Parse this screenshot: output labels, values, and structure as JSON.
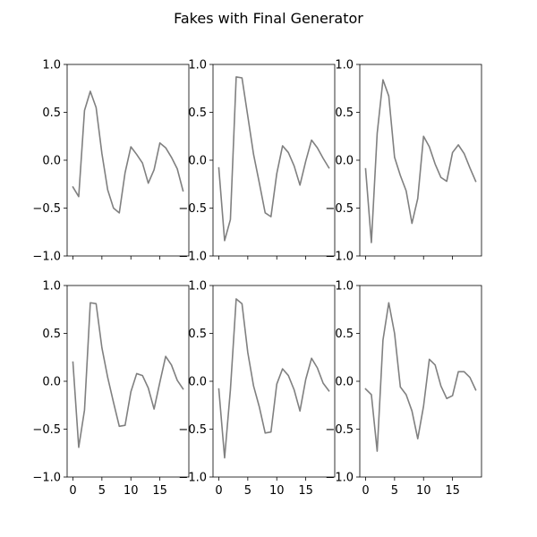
{
  "figure": {
    "title": "Fakes with Final Generator"
  },
  "chart_data": [
    {
      "type": "line",
      "panel": "row1-col1",
      "x": [
        0,
        1,
        2,
        3,
        4,
        5,
        6,
        7,
        8,
        9,
        10,
        11,
        12,
        13,
        14,
        15,
        16,
        17,
        18,
        19
      ],
      "y": [
        -0.28,
        -0.38,
        0.52,
        0.72,
        0.55,
        0.07,
        -0.31,
        -0.5,
        -0.55,
        -0.13,
        0.14,
        0.06,
        -0.03,
        -0.24,
        -0.1,
        0.18,
        0.13,
        0.03,
        -0.09,
        -0.32
      ],
      "series_color": "#808080",
      "xlim": [
        -1,
        20
      ],
      "ylim": [
        -1.0,
        1.0
      ],
      "yticks": [
        "1.0",
        "0.5",
        "0.0",
        "−0.5",
        "−1.0"
      ],
      "xticks": [
        "0",
        "5",
        "10",
        "15"
      ],
      "show_xticklabels": false
    },
    {
      "type": "line",
      "panel": "row1-col2",
      "x": [
        0,
        1,
        2,
        3,
        4,
        5,
        6,
        7,
        8,
        9,
        10,
        11,
        12,
        13,
        14,
        15,
        16,
        17,
        18,
        19
      ],
      "y": [
        -0.08,
        -0.84,
        -0.62,
        0.87,
        0.86,
        0.46,
        0.06,
        -0.24,
        -0.55,
        -0.59,
        -0.14,
        0.15,
        0.08,
        -0.06,
        -0.26,
        -0.01,
        0.21,
        0.13,
        0.02,
        -0.08
      ],
      "series_color": "#808080",
      "xlim": [
        -1,
        20
      ],
      "ylim": [
        -1.0,
        1.0
      ],
      "yticks": [
        "1.0",
        "0.5",
        "0.0",
        "−0.5",
        "−1.0"
      ],
      "xticks": [
        "0",
        "5",
        "10",
        "15"
      ],
      "show_xticklabels": false
    },
    {
      "type": "line",
      "panel": "row1-col3",
      "x": [
        0,
        1,
        2,
        3,
        4,
        5,
        6,
        7,
        8,
        9,
        10,
        11,
        12,
        13,
        14,
        15,
        16,
        17,
        18,
        19
      ],
      "y": [
        -0.09,
        -0.86,
        0.28,
        0.84,
        0.67,
        0.03,
        -0.16,
        -0.32,
        -0.66,
        -0.4,
        0.25,
        0.14,
        -0.04,
        -0.18,
        -0.22,
        0.08,
        0.16,
        0.07,
        -0.08,
        -0.22
      ],
      "series_color": "#808080",
      "xlim": [
        -1,
        20
      ],
      "ylim": [
        -1.0,
        1.0
      ],
      "yticks": [
        "1.0",
        "0.5",
        "0.0",
        "−0.5",
        "−1.0"
      ],
      "xticks": [
        "0",
        "5",
        "10",
        "15"
      ],
      "show_xticklabels": false
    },
    {
      "type": "line",
      "panel": "row2-col1",
      "x": [
        0,
        1,
        2,
        3,
        4,
        5,
        6,
        7,
        8,
        9,
        10,
        11,
        12,
        13,
        14,
        15,
        16,
        17,
        18,
        19
      ],
      "y": [
        0.2,
        -0.69,
        -0.3,
        0.82,
        0.81,
        0.35,
        0.04,
        -0.22,
        -0.47,
        -0.46,
        -0.11,
        0.08,
        0.06,
        -0.07,
        -0.29,
        -0.01,
        0.26,
        0.17,
        0.01,
        -0.08
      ],
      "series_color": "#808080",
      "xlim": [
        -1,
        20
      ],
      "ylim": [
        -1.0,
        1.0
      ],
      "yticks": [
        "1.0",
        "0.5",
        "0.0",
        "−0.5",
        "−1.0"
      ],
      "xticks": [
        "0",
        "5",
        "10",
        "15"
      ],
      "show_xticklabels": true
    },
    {
      "type": "line",
      "panel": "row2-col2",
      "x": [
        0,
        1,
        2,
        3,
        4,
        5,
        6,
        7,
        8,
        9,
        10,
        11,
        12,
        13,
        14,
        15,
        16,
        17,
        18,
        19
      ],
      "y": [
        -0.08,
        -0.8,
        -0.09,
        0.86,
        0.81,
        0.3,
        -0.05,
        -0.27,
        -0.54,
        -0.53,
        -0.03,
        0.13,
        0.06,
        -0.09,
        -0.31,
        0.02,
        0.24,
        0.14,
        -0.02,
        -0.1
      ],
      "series_color": "#808080",
      "xlim": [
        -1,
        20
      ],
      "ylim": [
        -1.0,
        1.0
      ],
      "yticks": [
        "1.0",
        "0.5",
        "0.0",
        "−0.5",
        "−1.0"
      ],
      "xticks": [
        "0",
        "5",
        "10",
        "15"
      ],
      "show_xticklabels": true
    },
    {
      "type": "line",
      "panel": "row2-col3",
      "x": [
        0,
        1,
        2,
        3,
        4,
        5,
        6,
        7,
        8,
        9,
        10,
        11,
        12,
        13,
        14,
        15,
        16,
        17,
        18,
        19
      ],
      "y": [
        -0.08,
        -0.14,
        -0.73,
        0.43,
        0.82,
        0.5,
        -0.06,
        -0.14,
        -0.31,
        -0.6,
        -0.26,
        0.23,
        0.17,
        -0.05,
        -0.18,
        -0.15,
        0.1,
        0.1,
        0.04,
        -0.09
      ],
      "series_color": "#808080",
      "xlim": [
        -1,
        20
      ],
      "ylim": [
        -1.0,
        1.0
      ],
      "yticks": [
        "1.0",
        "0.5",
        "0.0",
        "−0.5",
        "−1.0"
      ],
      "xticks": [
        "0",
        "5",
        "10",
        "15"
      ],
      "show_xticklabels": true
    }
  ]
}
